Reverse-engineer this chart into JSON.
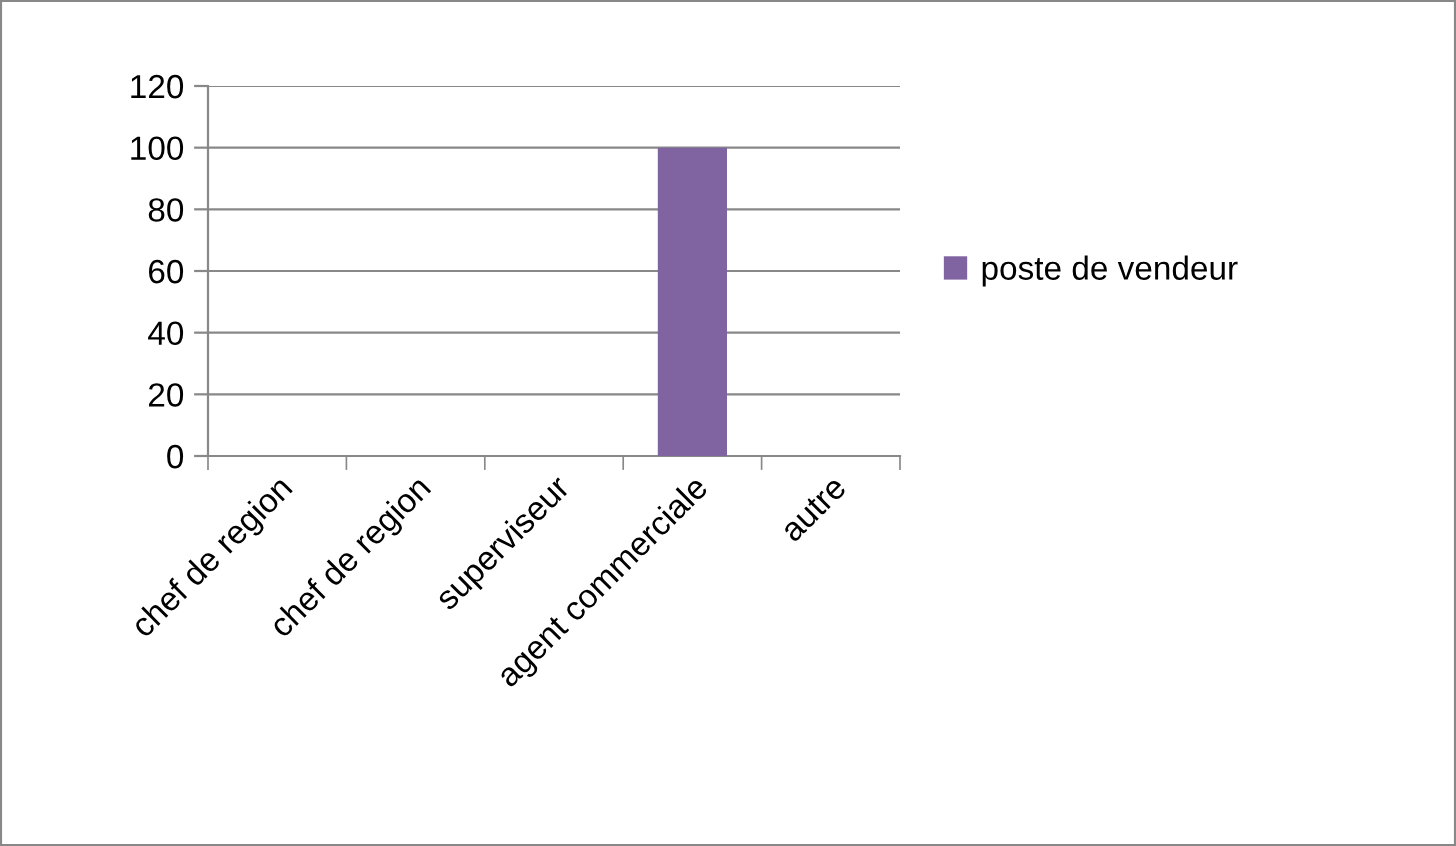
{
  "chart_data": {
    "type": "bar",
    "categories": [
      "chef de region",
      "chef de region",
      "superviseur",
      "agent commerciale",
      "autre"
    ],
    "series": [
      {
        "name": "poste de vendeur",
        "color": "#8064a2",
        "values": [
          0,
          0,
          0,
          100,
          0
        ]
      }
    ],
    "ylim": [
      0,
      120
    ],
    "yticks": [
      0,
      20,
      40,
      60,
      80,
      100,
      120
    ],
    "grid": "y",
    "legend": "right"
  }
}
